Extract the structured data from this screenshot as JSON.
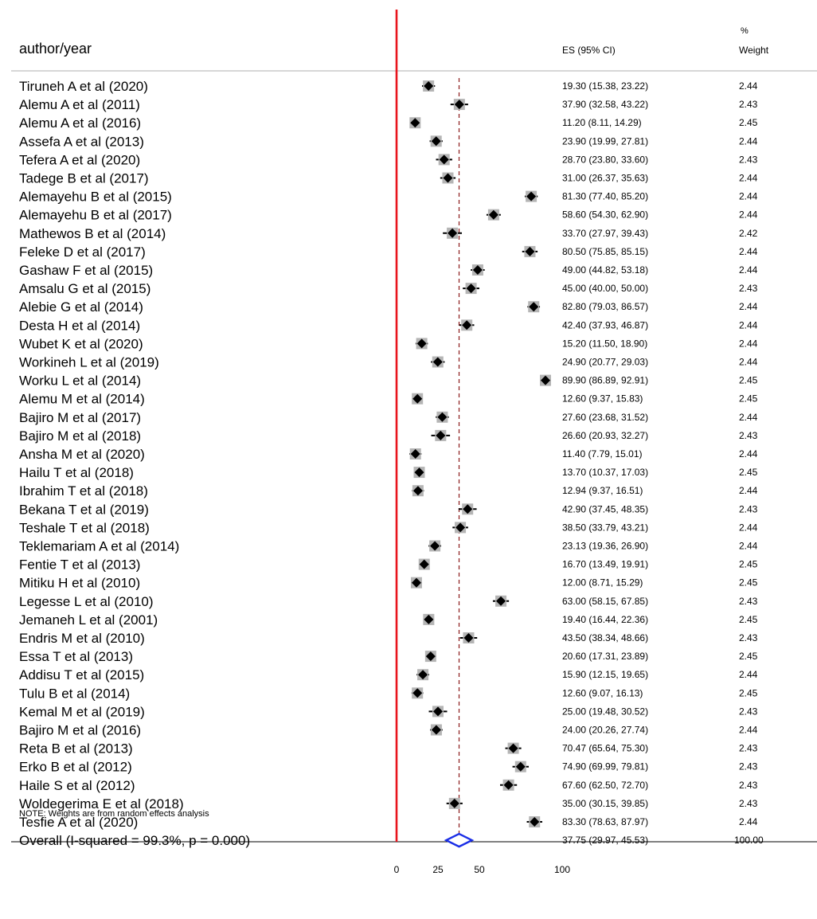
{
  "chart_data": {
    "type": "forest",
    "columns": {
      "study": "author/year",
      "es": "ES (95% CI)",
      "weight_line1": "%",
      "weight_line2": "Weight"
    },
    "xlim": [
      0,
      100
    ],
    "xticks": [
      "0",
      "25",
      "50",
      "100"
    ],
    "overall_line": 37.75,
    "note": "NOTE: Weights are from random effects analysis",
    "colors": {
      "axis_line": "#e8141c",
      "overall_line": "#8b1a1a",
      "study_marker": "#000000",
      "overall_diamond": "#1a2ee6"
    },
    "studies": [
      {
        "label": "Tiruneh A et al (2020)",
        "es": 19.3,
        "lo": 15.38,
        "hi": 23.22,
        "es_text": "19.30 (15.38, 23.22)",
        "weight": "2.44"
      },
      {
        "label": "Alemu A et al (2011)",
        "es": 37.9,
        "lo": 32.58,
        "hi": 43.22,
        "es_text": "37.90 (32.58, 43.22)",
        "weight": "2.43"
      },
      {
        "label": "Alemu A et al (2016)",
        "es": 11.2,
        "lo": 8.11,
        "hi": 14.29,
        "es_text": "11.20 (8.11, 14.29)",
        "weight": "2.45"
      },
      {
        "label": "Assefa  A et al (2013)",
        "es": 23.9,
        "lo": 19.99,
        "hi": 27.81,
        "es_text": "23.90 (19.99, 27.81)",
        "weight": "2.44"
      },
      {
        "label": "Tefera A et al (2020)",
        "es": 28.7,
        "lo": 23.8,
        "hi": 33.6,
        "es_text": "28.70 (23.80, 33.60)",
        "weight": "2.43"
      },
      {
        "label": "Tadege B et al (2017)",
        "es": 31.0,
        "lo": 26.37,
        "hi": 35.63,
        "es_text": "31.00 (26.37, 35.63)",
        "weight": "2.44"
      },
      {
        "label": "Alemayehu B et al (2015)",
        "es": 81.3,
        "lo": 77.4,
        "hi": 85.2,
        "es_text": "81.30 (77.40, 85.20)",
        "weight": "2.44"
      },
      {
        "label": "Alemayehu B et al (2017)",
        "es": 58.6,
        "lo": 54.3,
        "hi": 62.9,
        "es_text": "58.60 (54.30, 62.90)",
        "weight": "2.44"
      },
      {
        "label": "Mathewos B et al (2014)",
        "es": 33.7,
        "lo": 27.97,
        "hi": 39.43,
        "es_text": "33.70 (27.97, 39.43)",
        "weight": "2.42"
      },
      {
        "label": "Feleke D et al (2017)",
        "es": 80.5,
        "lo": 75.85,
        "hi": 85.15,
        "es_text": "80.50 (75.85, 85.15)",
        "weight": "2.44"
      },
      {
        "label": "Gashaw F et al (2015)",
        "es": 49.0,
        "lo": 44.82,
        "hi": 53.18,
        "es_text": "49.00 (44.82, 53.18)",
        "weight": "2.44"
      },
      {
        "label": "Amsalu G et al (2015)",
        "es": 45.0,
        "lo": 40.0,
        "hi": 50.0,
        "es_text": "45.00 (40.00, 50.00)",
        "weight": "2.43"
      },
      {
        "label": "Alebie G et al (2014)",
        "es": 82.8,
        "lo": 79.03,
        "hi": 86.57,
        "es_text": "82.80 (79.03, 86.57)",
        "weight": "2.44"
      },
      {
        "label": "Desta H et al (2014)",
        "es": 42.4,
        "lo": 37.93,
        "hi": 46.87,
        "es_text": "42.40 (37.93, 46.87)",
        "weight": "2.44"
      },
      {
        "label": "Wubet K et al (2020)",
        "es": 15.2,
        "lo": 11.5,
        "hi": 18.9,
        "es_text": "15.20 (11.50, 18.90)",
        "weight": "2.44"
      },
      {
        "label": "Workineh L et al (2019)",
        "es": 24.9,
        "lo": 20.77,
        "hi": 29.03,
        "es_text": "24.90 (20.77, 29.03)",
        "weight": "2.44"
      },
      {
        "label": "Worku L et al (2014)",
        "es": 89.9,
        "lo": 86.89,
        "hi": 92.91,
        "es_text": "89.90 (86.89, 92.91)",
        "weight": "2.45"
      },
      {
        "label": "Alemu M et al (2014)",
        "es": 12.6,
        "lo": 9.37,
        "hi": 15.83,
        "es_text": "12.60 (9.37, 15.83)",
        "weight": "2.45"
      },
      {
        "label": "Bajiro M et al (2017)",
        "es": 27.6,
        "lo": 23.68,
        "hi": 31.52,
        "es_text": "27.60 (23.68, 31.52)",
        "weight": "2.44"
      },
      {
        "label": "Bajiro M et al (2018)",
        "es": 26.6,
        "lo": 20.93,
        "hi": 32.27,
        "es_text": "26.60 (20.93, 32.27)",
        "weight": "2.43"
      },
      {
        "label": "Ansha M et al (2020)",
        "es": 11.4,
        "lo": 7.79,
        "hi": 15.01,
        "es_text": "11.40 (7.79, 15.01)",
        "weight": "2.44"
      },
      {
        "label": "Hailu T et al (2018)",
        "es": 13.7,
        "lo": 10.37,
        "hi": 17.03,
        "es_text": "13.70 (10.37, 17.03)",
        "weight": "2.45"
      },
      {
        "label": "Ibrahim T et al (2018)",
        "es": 12.94,
        "lo": 9.37,
        "hi": 16.51,
        "es_text": "12.94 (9.37, 16.51)",
        "weight": "2.44"
      },
      {
        "label": "Bekana T et al (2019)",
        "es": 42.9,
        "lo": 37.45,
        "hi": 48.35,
        "es_text": "42.90 (37.45, 48.35)",
        "weight": "2.43"
      },
      {
        "label": "Teshale T et al (2018)",
        "es": 38.5,
        "lo": 33.79,
        "hi": 43.21,
        "es_text": "38.50 (33.79, 43.21)",
        "weight": "2.44"
      },
      {
        "label": "Teklemariam A et al (2014)",
        "es": 23.13,
        "lo": 19.36,
        "hi": 26.9,
        "es_text": "23.13 (19.36, 26.90)",
        "weight": "2.44"
      },
      {
        "label": "Fentie T et al (2013)",
        "es": 16.7,
        "lo": 13.49,
        "hi": 19.91,
        "es_text": "16.70 (13.49, 19.91)",
        "weight": "2.45"
      },
      {
        "label": "Mitiku H et al (2010)",
        "es": 12.0,
        "lo": 8.71,
        "hi": 15.29,
        "es_text": "12.00 (8.71, 15.29)",
        "weight": "2.45"
      },
      {
        "label": "Legesse L et al (2010)",
        "es": 63.0,
        "lo": 58.15,
        "hi": 67.85,
        "es_text": "63.00 (58.15, 67.85)",
        "weight": "2.43"
      },
      {
        "label": "Jemaneh L et al (2001)",
        "es": 19.4,
        "lo": 16.44,
        "hi": 22.36,
        "es_text": "19.40 (16.44, 22.36)",
        "weight": "2.45"
      },
      {
        "label": "Endris M et al (2010)",
        "es": 43.5,
        "lo": 38.34,
        "hi": 48.66,
        "es_text": "43.50 (38.34, 48.66)",
        "weight": "2.43"
      },
      {
        "label": "Essa T et al (2013)",
        "es": 20.6,
        "lo": 17.31,
        "hi": 23.89,
        "es_text": "20.60 (17.31, 23.89)",
        "weight": "2.45"
      },
      {
        "label": "Addisu T et al (2015)",
        "es": 15.9,
        "lo": 12.15,
        "hi": 19.65,
        "es_text": "15.90 (12.15, 19.65)",
        "weight": "2.44"
      },
      {
        "label": "Tulu B et al (2014)",
        "es": 12.6,
        "lo": 9.07,
        "hi": 16.13,
        "es_text": "12.60 (9.07, 16.13)",
        "weight": "2.45"
      },
      {
        "label": "Kemal M et al (2019)",
        "es": 25.0,
        "lo": 19.48,
        "hi": 30.52,
        "es_text": "25.00 (19.48, 30.52)",
        "weight": "2.43"
      },
      {
        "label": "Bajiro M et al (2016)",
        "es": 24.0,
        "lo": 20.26,
        "hi": 27.74,
        "es_text": "24.00 (20.26, 27.74)",
        "weight": "2.44"
      },
      {
        "label": "Reta B et al (2013)",
        "es": 70.47,
        "lo": 65.64,
        "hi": 75.3,
        "es_text": "70.47 (65.64, 75.30)",
        "weight": "2.43"
      },
      {
        "label": "Erko B et al (2012)",
        "es": 74.9,
        "lo": 69.99,
        "hi": 79.81,
        "es_text": "74.90 (69.99, 79.81)",
        "weight": "2.43"
      },
      {
        "label": "Haile S et al (2012)",
        "es": 67.6,
        "lo": 62.5,
        "hi": 72.7,
        "es_text": "67.60 (62.50, 72.70)",
        "weight": "2.43"
      },
      {
        "label": "Woldegerima E et al (2018)",
        "es": 35.0,
        "lo": 30.15,
        "hi": 39.85,
        "es_text": "35.00 (30.15, 39.85)",
        "weight": "2.43"
      },
      {
        "label": "Tesfie A et al (2020)",
        "es": 83.3,
        "lo": 78.63,
        "hi": 87.97,
        "es_text": "83.30 (78.63, 87.97)",
        "weight": "2.44"
      }
    ],
    "overall": {
      "label": "Overall  (I-squared = 99.3%, p = 0.000)",
      "es": 37.75,
      "lo": 29.97,
      "hi": 45.53,
      "es_text": "37.75 (29.97, 45.53)",
      "weight": "100.00"
    }
  }
}
